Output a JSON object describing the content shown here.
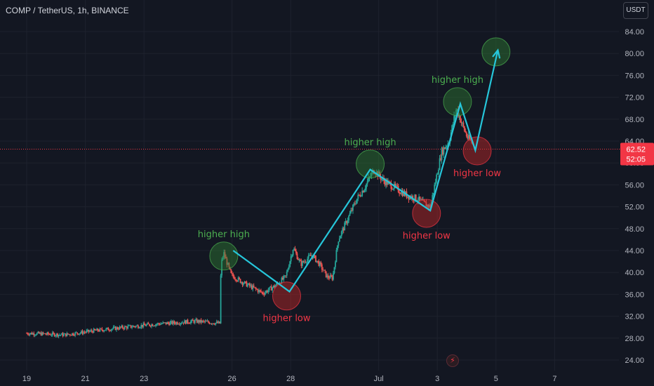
{
  "header": {
    "title": "COMP / TetherUS, 1h, BINANCE",
    "currency": "USDT"
  },
  "chart_data": {
    "type": "candlestick",
    "title": "COMP / TetherUS, 1h, BINANCE",
    "symbol": "COMP / TetherUS",
    "interval": "1h",
    "exchange": "BINANCE",
    "x_ticks": [
      "19",
      "21",
      "23",
      "26",
      "28",
      "Jul",
      "3",
      "5",
      "7"
    ],
    "y_ticks": [
      "24.00",
      "28.00",
      "32.00",
      "36.00",
      "40.00",
      "44.00",
      "48.00",
      "52.00",
      "56.00",
      "60.00",
      "64.00",
      "68.00",
      "72.00",
      "76.00",
      "80.00",
      "84.00"
    ],
    "ylim": [
      23,
      88
    ],
    "last_price": "62.52",
    "countdown": "52:05",
    "price_line": 62.52,
    "price_path": [
      [
        0,
        28.9
      ],
      [
        2,
        28.6
      ],
      [
        3.5,
        29.3
      ],
      [
        5,
        29.9
      ],
      [
        7,
        30.6
      ],
      [
        9,
        31.1
      ],
      [
        10.3,
        30.7
      ],
      [
        10.35,
        41.5
      ],
      [
        10.5,
        43.5
      ],
      [
        10.9,
        39.5
      ],
      [
        11.5,
        38.2
      ],
      [
        12,
        37.3
      ],
      [
        12.6,
        36.2
      ],
      [
        13.2,
        37.5
      ],
      [
        13.8,
        39.2
      ],
      [
        14.2,
        44.5
      ],
      [
        14.6,
        41.5
      ],
      [
        15.2,
        43.2
      ],
      [
        15.6,
        41.5
      ],
      [
        16,
        39.2
      ],
      [
        16.3,
        39.0
      ],
      [
        16.6,
        46.0
      ],
      [
        17.2,
        50.5
      ],
      [
        17.6,
        53.5
      ],
      [
        18,
        55.5
      ],
      [
        18.3,
        57.5
      ],
      [
        18.5,
        58.8
      ],
      [
        19,
        56.8
      ],
      [
        19.6,
        55.5
      ],
      [
        20.3,
        54.0
      ],
      [
        20.8,
        53.5
      ],
      [
        21.2,
        52.5
      ],
      [
        21.5,
        52.0
      ],
      [
        21.8,
        57.0
      ],
      [
        22.1,
        62.0
      ],
      [
        22.5,
        64.0
      ],
      [
        22.9,
        70.0
      ],
      [
        23.2,
        67.0
      ],
      [
        23.5,
        64.5
      ],
      [
        23.8,
        63.5
      ]
    ],
    "zigzag": [
      [
        11,
        44.0
      ],
      [
        14,
        36.5
      ],
      [
        18.3,
        58.8
      ],
      [
        21.5,
        51.3
      ],
      [
        23.1,
        70.8
      ],
      [
        23.9,
        62.3
      ],
      [
        25.1,
        80.6
      ]
    ],
    "pattern_circles": [
      {
        "x": 10.5,
        "y": 43.0,
        "kind": "high",
        "label": "higher high"
      },
      {
        "x": 13.85,
        "y": 35.7,
        "kind": "low",
        "label": "higher low"
      },
      {
        "x": 18.3,
        "y": 59.8,
        "kind": "high",
        "label": "higher high"
      },
      {
        "x": 21.3,
        "y": 50.8,
        "kind": "low",
        "label": "higher low"
      },
      {
        "x": 22.95,
        "y": 71.2,
        "kind": "high",
        "label": "higher high"
      },
      {
        "x": 24.0,
        "y": 62.2,
        "kind": "low",
        "label": "higher low"
      },
      {
        "x": 25.0,
        "y": 80.3,
        "kind": "high",
        "label": ""
      }
    ],
    "colors": {
      "background": "#131722",
      "grid": "#1e222d",
      "up": "#26a69a",
      "down": "#ef5350",
      "zigzag": "#26c6da",
      "high_fill": "#2e7d32",
      "low_fill": "#c62828",
      "high_text": "#4caf50",
      "low_text": "#f23645",
      "price_line": "#f23645"
    },
    "grid": true
  }
}
